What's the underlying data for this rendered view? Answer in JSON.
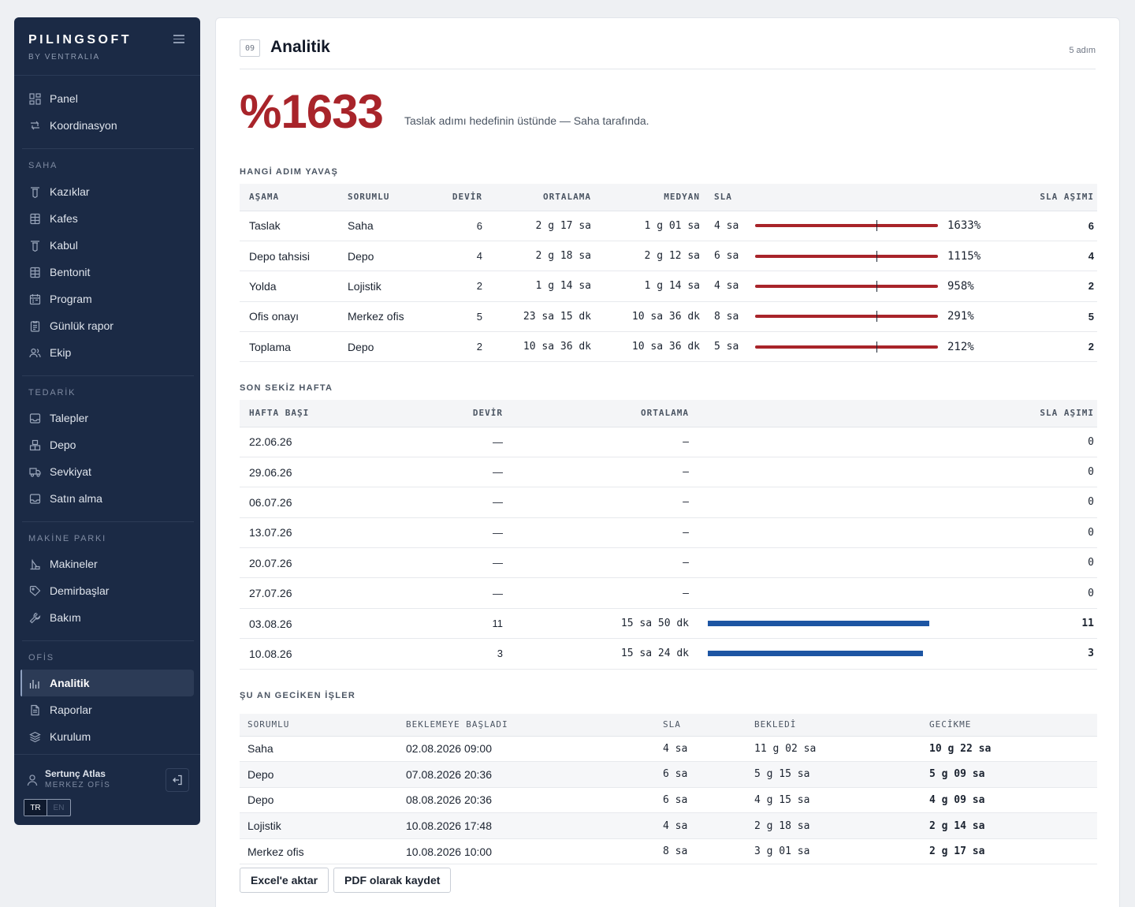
{
  "brand": {
    "name": "PILINGSOFT",
    "sub": "BY VENTRALIA"
  },
  "nav": {
    "top": [
      {
        "label": "Panel",
        "icon": "dashboard-icon"
      },
      {
        "label": "Koordinasyon",
        "icon": "route-icon"
      }
    ],
    "saha_title": "SAHA",
    "saha": [
      {
        "label": "Kazıklar",
        "icon": "pile-icon"
      },
      {
        "label": "Kafes",
        "icon": "cage-icon"
      },
      {
        "label": "Kabul",
        "icon": "pile-icon"
      },
      {
        "label": "Bentonit",
        "icon": "cage-icon"
      },
      {
        "label": "Program",
        "icon": "calendar-icon"
      },
      {
        "label": "Günlük rapor",
        "icon": "clipboard-icon"
      },
      {
        "label": "Ekip",
        "icon": "team-icon"
      }
    ],
    "tedarik_title": "TEDARİK",
    "tedarik": [
      {
        "label": "Talepler",
        "icon": "inbox-icon"
      },
      {
        "label": "Depo",
        "icon": "boxes-icon"
      },
      {
        "label": "Sevkiyat",
        "icon": "truck-icon"
      },
      {
        "label": "Satın alma",
        "icon": "inbox-icon"
      }
    ],
    "makine_title": "MAKİNE PARKI",
    "makine": [
      {
        "label": "Makineler",
        "icon": "machine-icon"
      },
      {
        "label": "Demirbaşlar",
        "icon": "tag-icon"
      },
      {
        "label": "Bakım",
        "icon": "wrench-icon"
      }
    ],
    "ofis_title": "OFİS",
    "ofis": [
      {
        "label": "Analitik",
        "icon": "bar-chart-icon",
        "active": true
      },
      {
        "label": "Raporlar",
        "icon": "document-icon"
      },
      {
        "label": "Kurulum",
        "icon": "layers-icon"
      }
    ]
  },
  "user": {
    "name": "Sertunç Atlas",
    "role": "MERKEZ OFİS",
    "lang_on": "TR",
    "lang_off": "EN"
  },
  "header": {
    "step": "09",
    "title": "Analitik",
    "step_count": "5 adım"
  },
  "headline": {
    "value": "%1633",
    "description": "Taslak adımı hedefinin üstünde — Saha tarafında."
  },
  "slow_steps": {
    "title": "HANGİ ADIM YAVAŞ",
    "headers": {
      "stage": "AŞAMA",
      "owner": "SORUMLU",
      "turnover": "DEVİR",
      "average": "ORTALAMA",
      "median": "MEDYAN",
      "sla": "SLA",
      "breach": "SLA AŞIMI"
    },
    "rows": [
      {
        "stage": "Taslak",
        "owner": "Saha",
        "turnover": "6",
        "average": "2 g 17 sa",
        "median": "1 g 01 sa",
        "sla": "4 sa",
        "pct": "1633%",
        "breach": "6"
      },
      {
        "stage": "Depo tahsisi",
        "owner": "Depo",
        "turnover": "4",
        "average": "2 g 18 sa",
        "median": "2 g 12 sa",
        "sla": "6 sa",
        "pct": "1115%",
        "breach": "4"
      },
      {
        "stage": "Yolda",
        "owner": "Lojistik",
        "turnover": "2",
        "average": "1 g 14 sa",
        "median": "1 g 14 sa",
        "sla": "4 sa",
        "pct": "958%",
        "breach": "2"
      },
      {
        "stage": "Ofis onayı",
        "owner": "Merkez ofis",
        "turnover": "5",
        "average": "23 sa 15 dk",
        "median": "10 sa 36 dk",
        "sla": "8 sa",
        "pct": "291%",
        "breach": "5"
      },
      {
        "stage": "Toplama",
        "owner": "Depo",
        "turnover": "2",
        "average": "10 sa 36 dk",
        "median": "10 sa 36 dk",
        "sla": "5 sa",
        "pct": "212%",
        "breach": "2"
      }
    ]
  },
  "weeks": {
    "title": "SON SEKİZ HAFTA",
    "headers": {
      "week": "HAFTA BAŞI",
      "turnover": "DEVİR",
      "average": "ORTALAMA",
      "breach": "SLA AŞIMI"
    },
    "rows": [
      {
        "week": "22.06.26",
        "turnover": "—",
        "average": "—",
        "breach": "0",
        "bar": 0
      },
      {
        "week": "29.06.26",
        "turnover": "—",
        "average": "—",
        "breach": "0",
        "bar": 0
      },
      {
        "week": "06.07.26",
        "turnover": "—",
        "average": "—",
        "breach": "0",
        "bar": 0
      },
      {
        "week": "13.07.26",
        "turnover": "—",
        "average": "—",
        "breach": "0",
        "bar": 0
      },
      {
        "week": "20.07.26",
        "turnover": "—",
        "average": "—",
        "breach": "0",
        "bar": 0
      },
      {
        "week": "27.07.26",
        "turnover": "—",
        "average": "—",
        "breach": "0",
        "bar": 0
      },
      {
        "week": "03.08.26",
        "turnover": "11",
        "average": "15 sa 50 dk",
        "breach": "11",
        "bar": 1.0
      },
      {
        "week": "10.08.26",
        "turnover": "3",
        "average": "15 sa 24 dk",
        "breach": "3",
        "bar": 0.97
      }
    ]
  },
  "delayed": {
    "title": "ŞU AN GECİKEN İŞLER",
    "headers": {
      "owner": "SORUMLU",
      "started": "BEKLEMEYE BAŞLADI",
      "sla": "SLA",
      "waited": "BEKLEDİ",
      "delay": "GECİKME"
    },
    "rows": [
      {
        "owner": "Saha",
        "started": "02.08.2026 09:00",
        "sla": "4 sa",
        "waited": "11 g 02 sa",
        "delay": "10 g 22 sa"
      },
      {
        "owner": "Depo",
        "started": "07.08.2026 20:36",
        "sla": "6 sa",
        "waited": "5 g 15 sa",
        "delay": "5 g 09 sa"
      },
      {
        "owner": "Depo",
        "started": "08.08.2026 20:36",
        "sla": "6 sa",
        "waited": "4 g 15 sa",
        "delay": "4 g 09 sa"
      },
      {
        "owner": "Lojistik",
        "started": "10.08.2026 17:48",
        "sla": "4 sa",
        "waited": "2 g 18 sa",
        "delay": "2 g 14 sa"
      },
      {
        "owner": "Merkez ofis",
        "started": "10.08.2026 10:00",
        "sla": "8 sa",
        "waited": "3 g 01 sa",
        "delay": "2 g 17 sa"
      }
    ]
  },
  "actions": {
    "excel": "Excel'e aktar",
    "pdf": "PDF olarak kaydet"
  },
  "colors": {
    "sidebar": "#1b2a45",
    "danger": "#a8242a",
    "accent": "#1d55a3"
  }
}
